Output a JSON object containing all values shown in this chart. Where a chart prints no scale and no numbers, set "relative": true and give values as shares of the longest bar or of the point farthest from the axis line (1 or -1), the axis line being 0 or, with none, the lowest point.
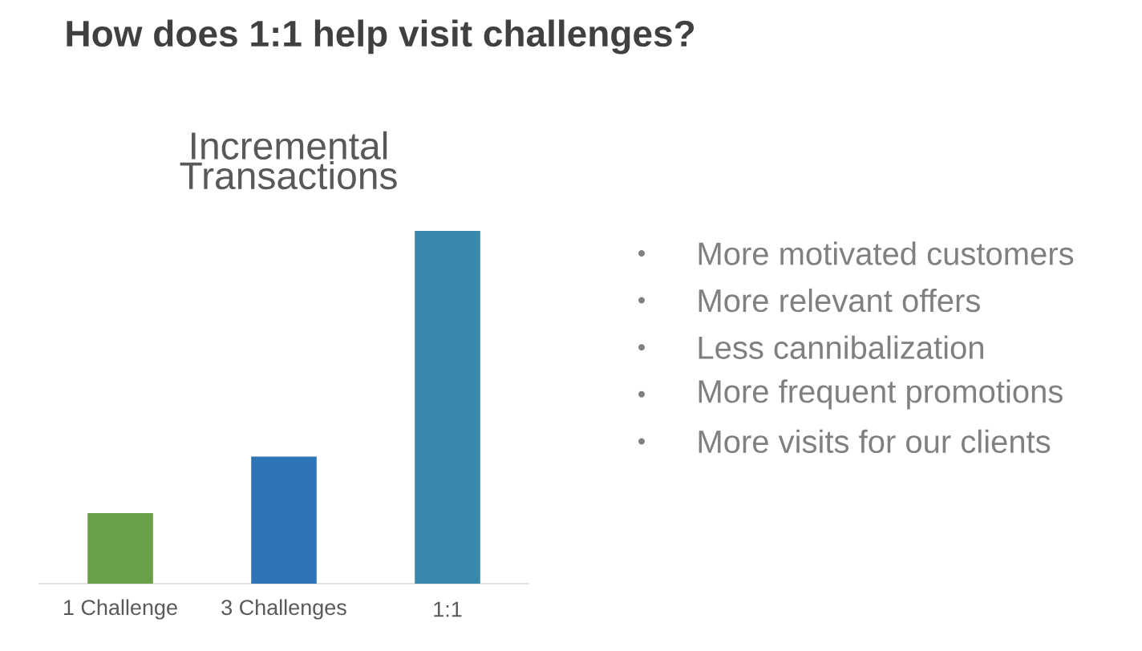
{
  "chart_data": {
    "type": "bar",
    "title": "How does 1:1 help visit challenges?",
    "subtitle": "Incremental Transactions",
    "categories": [
      "1 Challenge",
      "3 Challenges",
      "1:1"
    ],
    "values": [
      0.2,
      0.36,
      1
    ],
    "colors": [
      "#68a047",
      "#2e75b6",
      "#3b88ad"
    ],
    "relative": true,
    "annotations": [
      "More motivated customers",
      "More relevant offers",
      "Less cannibalization",
      "More frequent promotions",
      "More visits for our clients"
    ]
  }
}
